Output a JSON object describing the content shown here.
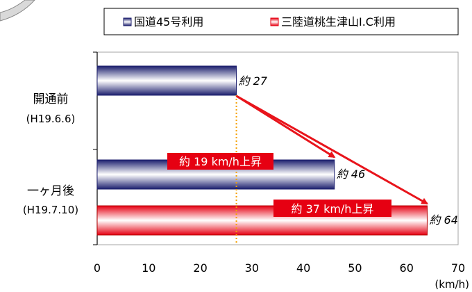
{
  "chart_data": {
    "type": "bar",
    "orientation": "horizontal",
    "xlim": [
      0,
      70
    ],
    "x_ticks": [
      "0",
      "10",
      "20",
      "30",
      "40",
      "50",
      "60",
      "70"
    ],
    "unit_label": "(km/h)",
    "categories": [
      {
        "label": "開通前",
        "sublabel": "(H19.6.6)"
      },
      {
        "label": "一ヶ月後",
        "sublabel": "(H19.7.10)"
      }
    ],
    "series": [
      {
        "name": "国道45号利用",
        "color": "#3b3f8c",
        "values": [
          27,
          46
        ],
        "value_labels": [
          "約 27",
          "約 46"
        ]
      },
      {
        "name": "三陸道桃生津山I.C利用",
        "color": "#e60012",
        "values": [
          null,
          64
        ],
        "value_labels": [
          null,
          "約 64"
        ]
      }
    ],
    "reference_line": {
      "x": 27,
      "color": "#f5a100"
    },
    "annotations": [
      {
        "text": "約 19 km/h上昇",
        "from_value": 27,
        "to_value": 46
      },
      {
        "text": "約 37 km/h上昇",
        "from_value": 27,
        "to_value": 64
      }
    ],
    "legend_position": "top",
    "grid": false
  },
  "colors": {
    "arrow": "#e8141b",
    "annotation_bg": "#e60012"
  }
}
